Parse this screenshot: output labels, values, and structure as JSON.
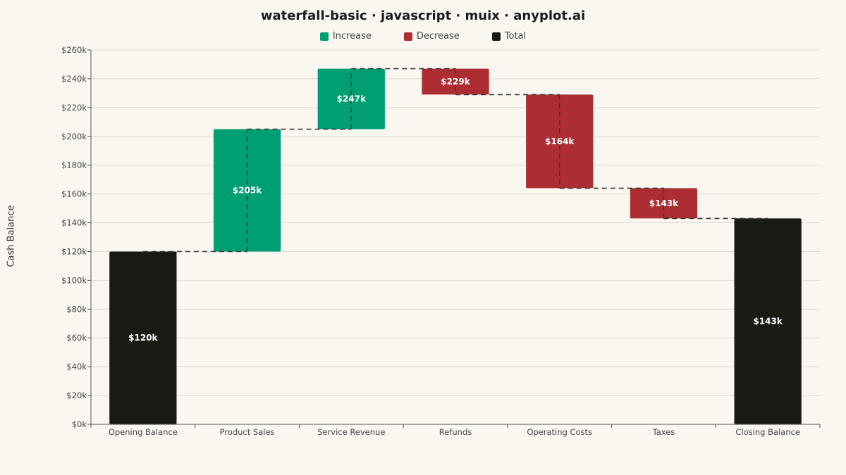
{
  "chart_data": {
    "type": "bar",
    "subtype": "waterfall",
    "title": "waterfall-basic · javascript · muix · anyplot.ai",
    "ylabel": "Cash Balance",
    "xlabel": "",
    "ylim": [
      0,
      260000
    ],
    "yticks": [
      0,
      20000,
      40000,
      60000,
      80000,
      100000,
      120000,
      140000,
      160000,
      180000,
      200000,
      220000,
      240000,
      260000
    ],
    "ytick_labels": [
      "$0k",
      "$20k",
      "$40k",
      "$60k",
      "$80k",
      "$100k",
      "$120k",
      "$140k",
      "$160k",
      "$180k",
      "$200k",
      "$220k",
      "$240k",
      "$260k"
    ],
    "grid": true,
    "legend_position": "top-center",
    "legend": [
      {
        "label": "Increase",
        "color": "#009e73"
      },
      {
        "label": "Decrease",
        "color": "#ad2e32"
      },
      {
        "label": "Total",
        "color": "#1a1a15"
      }
    ],
    "categories": [
      "Opening Balance",
      "Product Sales",
      "Service Revenue",
      "Refunds",
      "Operating Costs",
      "Taxes",
      "Closing Balance"
    ],
    "bars": [
      {
        "category": "Opening Balance",
        "kind": "Total",
        "start": 0,
        "end": 120000,
        "label": "$120k"
      },
      {
        "category": "Product Sales",
        "kind": "Increase",
        "start": 120000,
        "end": 205000,
        "label": "$205k"
      },
      {
        "category": "Service Revenue",
        "kind": "Increase",
        "start": 205000,
        "end": 247000,
        "label": "$247k"
      },
      {
        "category": "Refunds",
        "kind": "Decrease",
        "start": 247000,
        "end": 229000,
        "label": "$229k"
      },
      {
        "category": "Operating Costs",
        "kind": "Decrease",
        "start": 229000,
        "end": 164000,
        "label": "$164k"
      },
      {
        "category": "Taxes",
        "kind": "Decrease",
        "start": 164000,
        "end": 143000,
        "label": "$143k"
      },
      {
        "category": "Closing Balance",
        "kind": "Total",
        "start": 0,
        "end": 143000,
        "label": "$143k"
      }
    ],
    "colors": {
      "Increase": "#009e73",
      "Decrease": "#ad2e32",
      "Total": "#1a1a15",
      "connector": "#3a3a3a",
      "grid": "#dcdad3",
      "axis": "#555555"
    }
  }
}
